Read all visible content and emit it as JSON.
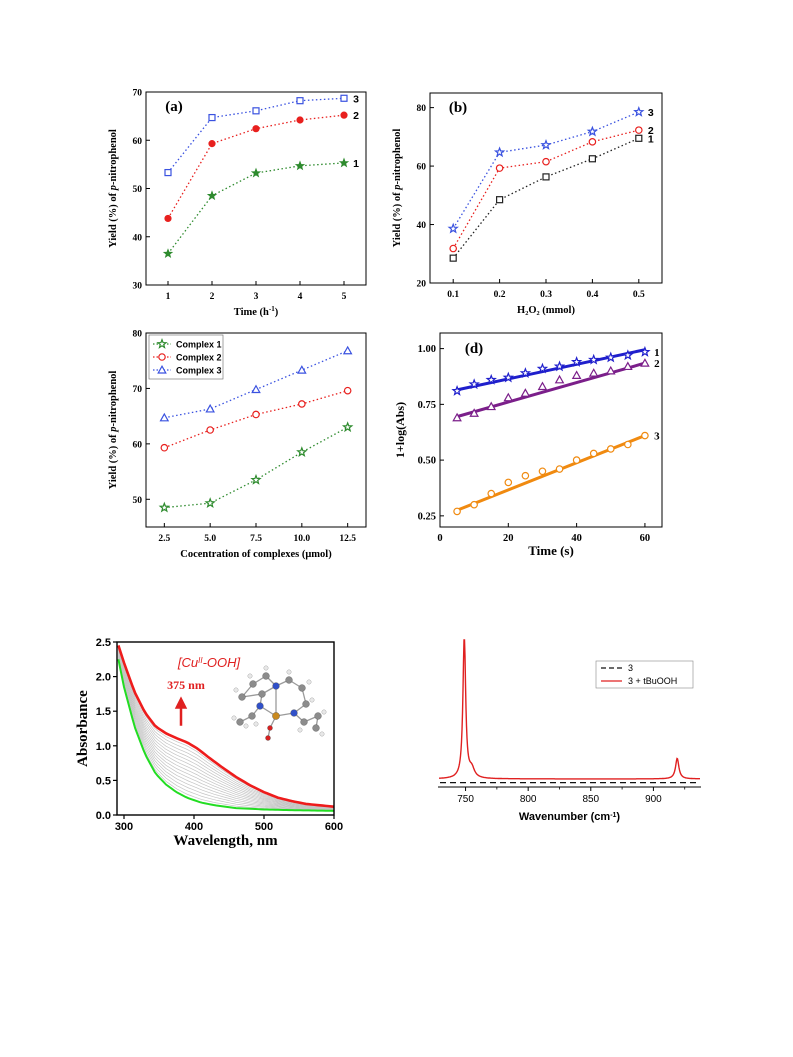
{
  "chart_data": [
    {
      "id": "a",
      "type": "line",
      "panel_label": "(a)",
      "xlabel": "Time (h",
      "xlabel_sup": "-1",
      "xlabel_end": ")",
      "ylabel_pre": "Yield (%) of ",
      "ylabel_it": "p",
      "ylabel_post": "-nitrophenol",
      "xlim": [
        0.5,
        5.5
      ],
      "ylim": [
        30,
        70
      ],
      "xticks": [
        1,
        2,
        3,
        4,
        5
      ],
      "xtick_labels": [
        "1",
        "2",
        "3",
        "4",
        "5"
      ],
      "yticks": [
        30,
        40,
        50,
        60,
        70
      ],
      "ytick_labels": [
        "30",
        "40",
        "50",
        "60",
        "70"
      ],
      "x": [
        1,
        2,
        3,
        4,
        5
      ],
      "series": [
        {
          "name": "1",
          "color": "#2e8b2e",
          "marker": "star-filled",
          "values": [
            36.5,
            48.5,
            53.2,
            54.7,
            55.3
          ]
        },
        {
          "name": "2",
          "color": "#e8201e",
          "marker": "circle-filled",
          "values": [
            43.8,
            59.3,
            62.4,
            64.2,
            65.2
          ]
        },
        {
          "name": "3",
          "color": "#3a52e0",
          "marker": "square-open",
          "values": [
            53.3,
            64.7,
            66.1,
            68.2,
            68.7
          ]
        }
      ]
    },
    {
      "id": "b",
      "type": "line",
      "panel_label": "(b)",
      "xlabel": "H₂O₂ (mmol)",
      "ylabel_pre": "Yield (%) of ",
      "ylabel_it": "p",
      "ylabel_post": "-nitrophenol",
      "xlim": [
        0.05,
        0.55
      ],
      "ylim": [
        20,
        85
      ],
      "xticks": [
        0.1,
        0.2,
        0.3,
        0.4,
        0.5
      ],
      "xtick_labels": [
        "0.1",
        "0.2",
        "0.3",
        "0.4",
        "0.5"
      ],
      "yticks": [
        20,
        40,
        60,
        80
      ],
      "ytick_labels": [
        "20",
        "40",
        "60",
        "80"
      ],
      "x": [
        0.1,
        0.2,
        0.3,
        0.4,
        0.5
      ],
      "series": [
        {
          "name": "1",
          "color": "#222222",
          "marker": "square-open",
          "values": [
            28.5,
            48.5,
            56.3,
            62.5,
            69.5
          ]
        },
        {
          "name": "2",
          "color": "#e8201e",
          "marker": "circle-open",
          "values": [
            31.8,
            59.3,
            61.5,
            68.3,
            72.3
          ]
        },
        {
          "name": "3",
          "color": "#3a52e0",
          "marker": "star-open",
          "values": [
            38.6,
            64.7,
            67.2,
            71.8,
            78.5
          ]
        }
      ]
    },
    {
      "id": "c",
      "type": "line",
      "panel_label": "(c)",
      "xlabel": "Cocentration of complexes (μmol)",
      "ylabel_pre": "Yield (%) of ",
      "ylabel_it": "p",
      "ylabel_post": "-nitrophenol",
      "xlim": [
        1.5,
        13.5
      ],
      "ylim": [
        45,
        80
      ],
      "xticks": [
        2.5,
        5.0,
        7.5,
        10.0,
        12.5
      ],
      "xtick_labels": [
        "2.5",
        "5.0",
        "7.5",
        "10.0",
        "12.5"
      ],
      "yticks": [
        50,
        60,
        70,
        80
      ],
      "ytick_labels": [
        "50",
        "60",
        "70",
        "80"
      ],
      "x": [
        2.5,
        5.0,
        7.5,
        10.0,
        12.5
      ],
      "legend": {
        "placement": "top-left"
      },
      "series": [
        {
          "name": "Complex 1",
          "color": "#2e8b2e",
          "marker": "star-open",
          "values": [
            48.5,
            49.3,
            53.5,
            58.5,
            63.0
          ]
        },
        {
          "name": "Complex 2",
          "color": "#e8201e",
          "marker": "circle-open",
          "values": [
            59.3,
            62.5,
            65.3,
            67.2,
            69.6
          ]
        },
        {
          "name": "Complex 3",
          "color": "#3a52e0",
          "marker": "triangle-open",
          "values": [
            64.7,
            66.3,
            69.8,
            73.3,
            76.8
          ]
        }
      ]
    },
    {
      "id": "d",
      "type": "scatter",
      "panel_label": "(d)",
      "xlabel": "Time (s)",
      "ylabel": "1+log(Abs)",
      "xlim": [
        0,
        65
      ],
      "ylim": [
        0.2,
        1.07
      ],
      "xticks": [
        0,
        20,
        40,
        60
      ],
      "xtick_labels": [
        "0",
        "20",
        "40",
        "60"
      ],
      "yticks": [
        0.25,
        0.5,
        0.75,
        1.0
      ],
      "ytick_labels": [
        "0.25",
        "0.50",
        "0.75",
        "1.00"
      ],
      "x": [
        5,
        10,
        15,
        20,
        25,
        30,
        35,
        40,
        45,
        50,
        55,
        60
      ],
      "series": [
        {
          "name": "1",
          "color": "#1f1fcc",
          "marker": "star-open",
          "values": [
            0.81,
            0.84,
            0.86,
            0.87,
            0.89,
            0.91,
            0.92,
            0.94,
            0.95,
            0.96,
            0.97,
            0.985
          ],
          "fit": [
            0.815,
            0.995
          ]
        },
        {
          "name": "2",
          "color": "#7b1f8a",
          "marker": "triangle-open",
          "values": [
            0.69,
            0.71,
            0.74,
            0.78,
            0.8,
            0.83,
            0.86,
            0.88,
            0.89,
            0.9,
            0.92,
            0.935
          ],
          "fit": [
            0.695,
            0.935
          ]
        },
        {
          "name": "3",
          "color": "#f08a10",
          "marker": "circle-open",
          "values": [
            0.27,
            0.3,
            0.35,
            0.4,
            0.43,
            0.45,
            0.46,
            0.5,
            0.53,
            0.55,
            0.57,
            0.61
          ],
          "fit": [
            0.275,
            0.61
          ]
        }
      ]
    },
    {
      "id": "e",
      "type": "line",
      "xlabel": "Wavelength, nm",
      "ylabel": "Absorbance",
      "xlim": [
        290,
        600
      ],
      "ylim": [
        0,
        2.5
      ],
      "xticks": [
        300,
        400,
        500,
        600
      ],
      "xtick_labels": [
        "300",
        "400",
        "500",
        "600"
      ],
      "yticks": [
        0,
        0.5,
        1.0,
        1.5,
        2.0,
        2.5
      ],
      "ytick_labels": [
        "0.0",
        "0.5",
        "1.0",
        "1.5",
        "2.0",
        "2.5"
      ],
      "annotation_pre": "[Cu",
      "annotation_sup": "II",
      "annotation_post": "-OOH]",
      "annotation_wavelength": "375 nm",
      "initial_color": "#22dd22",
      "final_color": "#ee1c1c",
      "intermediate_color": "#c4c4c4",
      "intermediate_count": 15,
      "final_spectrum": {
        "x": [
          292,
          300,
          315,
          330,
          345,
          360,
          375,
          390,
          405,
          420,
          440,
          460,
          480,
          500,
          520,
          540,
          560,
          580,
          600
        ],
        "values": [
          2.45,
          2.2,
          1.78,
          1.48,
          1.28,
          1.18,
          1.11,
          1.05,
          0.96,
          0.84,
          0.69,
          0.55,
          0.43,
          0.33,
          0.25,
          0.2,
          0.16,
          0.14,
          0.12
        ]
      },
      "initial_spectrum": {
        "x": [
          292,
          300,
          315,
          330,
          345,
          360,
          375,
          390,
          410,
          430,
          460,
          500,
          540,
          600
        ],
        "values": [
          2.25,
          1.85,
          1.28,
          0.88,
          0.6,
          0.44,
          0.33,
          0.25,
          0.18,
          0.14,
          0.1,
          0.08,
          0.07,
          0.06
        ]
      }
    },
    {
      "id": "f",
      "type": "line",
      "xlabel": "Wavenumber (cm",
      "xlabel_sup": "-1",
      "xlabel_end": ")",
      "xlim": [
        728,
        938
      ],
      "ylim": [
        0,
        1
      ],
      "xticks": [
        750,
        800,
        850,
        900
      ],
      "xtick_labels": [
        "750",
        "800",
        "850",
        "900"
      ],
      "legend": {
        "placement": "top-right"
      },
      "series": [
        {
          "name": "3",
          "color": "#111111",
          "style": "dashed",
          "values": [
            0.03
          ]
        },
        {
          "name": "3 + tBuOOH",
          "color": "#e02020",
          "style": "solid",
          "peaks": [
            {
              "center": 749,
              "height": 0.98,
              "width": 1.3
            },
            {
              "center": 919,
              "height": 0.14,
              "width": 1.6
            },
            {
              "center": 755,
              "height": 0.06,
              "width": 2.5
            }
          ],
          "baseline": 0.055
        }
      ]
    }
  ]
}
